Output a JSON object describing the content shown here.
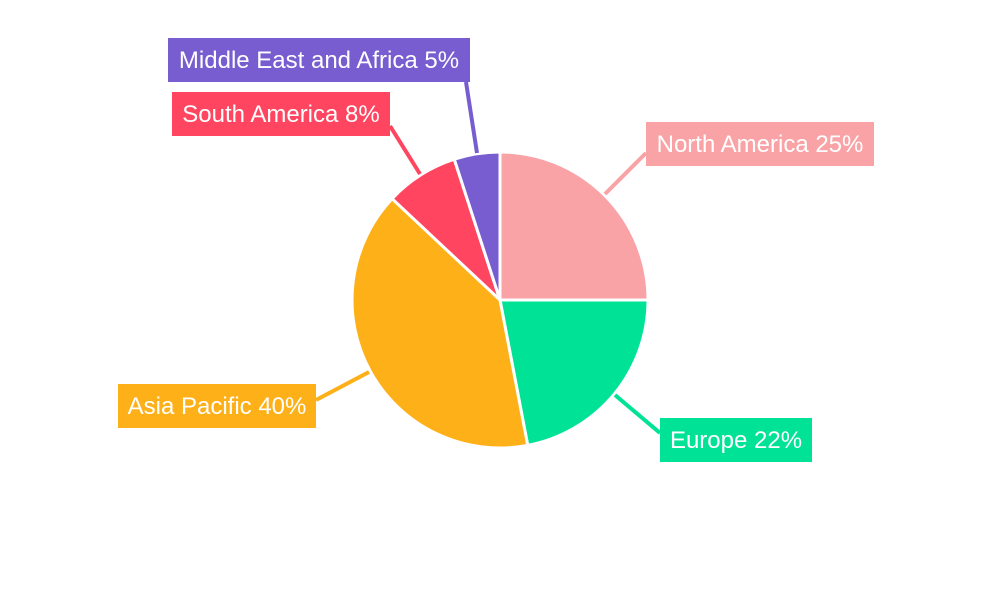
{
  "chart_data": {
    "type": "pie",
    "start_angle": "top, clockwise",
    "legend": "none",
    "slices": [
      {
        "label": "North America",
        "value": 25,
        "text": "North America 25%",
        "color": "#F9A3A6"
      },
      {
        "label": "Europe",
        "value": 22,
        "text": "Europe 22%",
        "color": "#00E396"
      },
      {
        "label": "Asia Pacific",
        "value": 40,
        "text": "Asia Pacific 40%",
        "color": "#FEB019"
      },
      {
        "label": "South America",
        "value": 8,
        "text": "South America 8%",
        "color": "#FF4560"
      },
      {
        "label": "Middle East and Africa",
        "value": 5,
        "text": "Middle East and Africa 5%",
        "color": "#775DD0"
      }
    ]
  }
}
